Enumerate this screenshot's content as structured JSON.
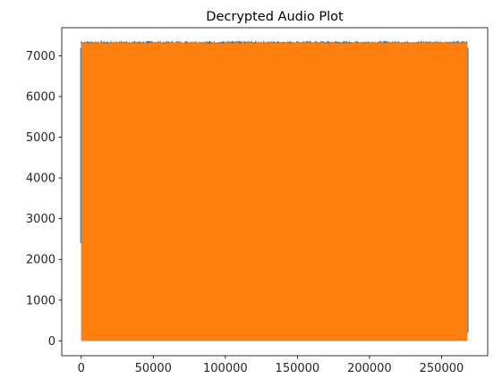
{
  "chart_data": {
    "type": "line",
    "title": "Decrypted Audio Plot",
    "xlabel": "",
    "ylabel": "",
    "xlim": [
      -13500,
      282000
    ],
    "ylim": [
      -365,
      7690
    ],
    "x_ticks": [
      0,
      50000,
      100000,
      150000,
      200000,
      250000
    ],
    "y_ticks": [
      0,
      1000,
      2000,
      3000,
      4000,
      5000,
      6000,
      7000
    ],
    "grid": false,
    "legend": "none",
    "series": [
      {
        "color": "#1f77b4",
        "x_range": [
          0,
          268000
        ],
        "y_range": [
          0,
          7320
        ],
        "description_of_shape": "dense band"
      },
      {
        "color": "#ff7f0e",
        "x_range": [
          0,
          268000
        ],
        "y_range": [
          0,
          7300
        ],
        "description_of_shape": "dense band"
      }
    ]
  }
}
